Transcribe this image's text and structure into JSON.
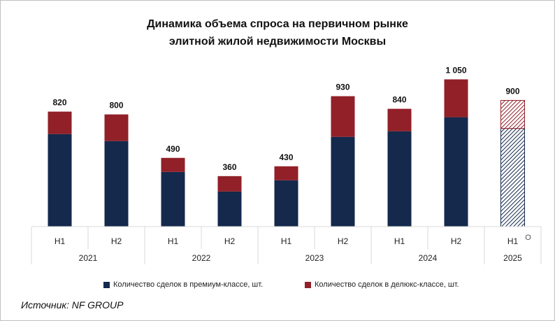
{
  "chart_data": {
    "type": "bar",
    "stacked": true,
    "title": [
      "Динамика объема спроса на первичном рынке",
      "элитной жилой недвижимости Москвы"
    ],
    "categories": [
      {
        "half": "H1",
        "year": "2021"
      },
      {
        "half": "H2",
        "year": "2021"
      },
      {
        "half": "H1",
        "year": "2022"
      },
      {
        "half": "H2",
        "year": "2022"
      },
      {
        "half": "H1",
        "year": "2023"
      },
      {
        "half": "H2",
        "year": "2023"
      },
      {
        "half": "H1",
        "year": "2024"
      },
      {
        "half": "H2",
        "year": "2024"
      },
      {
        "half": "H1",
        "year": "2025"
      }
    ],
    "years": [
      "2021",
      "2022",
      "2023",
      "2024",
      "2025"
    ],
    "series": [
      {
        "name": "Количество сделок в премиум-классе, шт.",
        "color": "#14294c",
        "values": [
          660,
          610,
          390,
          250,
          330,
          640,
          680,
          780,
          700
        ]
      },
      {
        "name": "Количество сделок в делюкс-классе, шт.",
        "color": "#922028",
        "values": [
          160,
          190,
          100,
          110,
          100,
          290,
          160,
          270,
          200
        ]
      }
    ],
    "totals": [
      "820",
      "800",
      "490",
      "360",
      "430",
      "930",
      "840",
      "1 050",
      "900"
    ],
    "forecast_index": 8,
    "forecast_marker": "O",
    "ylim": [
      0,
      1100
    ],
    "xlabel": "",
    "ylabel": ""
  },
  "legend_position": "bottom",
  "source_text": "Источник: NF GROUP"
}
